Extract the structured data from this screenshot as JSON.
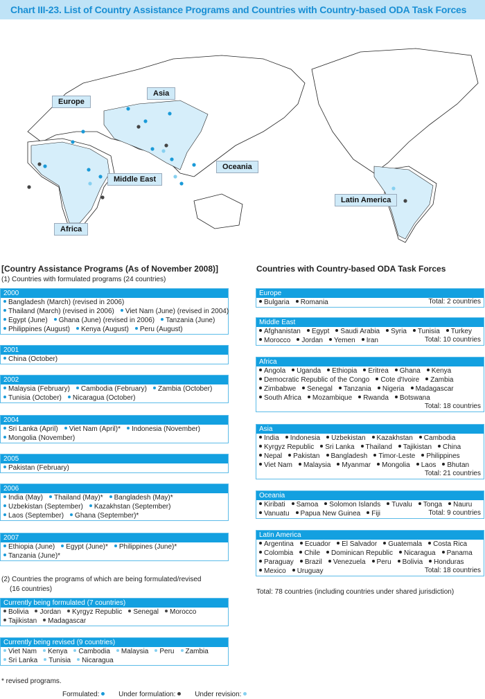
{
  "title": "Chart III-23. List of Country Assistance Programs and Countries with Country-based ODA Task Forces",
  "map": {
    "labels": [
      "Europe",
      "Asia",
      "Middle East",
      "Oceania",
      "Africa",
      "Latin America"
    ],
    "dot_colors": {
      "formulated": "#1a9ad8",
      "under_formulation": "#444444",
      "under_revision": "#86d0f0"
    }
  },
  "programs": {
    "heading": "[Country Assistance Programs (As of November 2008)]",
    "sub1": "(1) Countries with formulated programs (24 countries)",
    "years": [
      {
        "label": "2000",
        "rows": [
          [
            "Bangladesh (March) (revised in 2006)"
          ],
          [
            "Thailand (March) (revised in 2006)",
            "Viet Nam (June) (revised in 2004)"
          ],
          [
            "Egypt (June)",
            "Ghana (June) (revised in 2006)",
            "Tanzania (June)"
          ],
          [
            "Philippines (August)",
            "Kenya (August)",
            "Peru (August)"
          ]
        ]
      },
      {
        "label": "2001",
        "rows": [
          [
            "China (October)"
          ]
        ]
      },
      {
        "label": "2002",
        "rows": [
          [
            "Malaysia (February)",
            "Cambodia (February)",
            "Zambia (October)"
          ],
          [
            "Tunisia (October)",
            "Nicaragua (October)"
          ]
        ]
      },
      {
        "label": "2004",
        "rows": [
          [
            "Sri Lanka (April)",
            "Viet Nam (April)*",
            "Indonesia (November)"
          ],
          [
            "Mongolia (November)"
          ]
        ]
      },
      {
        "label": "2005",
        "rows": [
          [
            "Pakistan (February)"
          ]
        ]
      },
      {
        "label": "2006",
        "rows": [
          [
            "India (May)",
            "Thailand (May)*",
            "Bangladesh (May)*"
          ],
          [
            "Uzbekistan (September)",
            "Kazakhstan (September)"
          ],
          [
            "Laos (September)",
            "Ghana (September)*"
          ]
        ]
      },
      {
        "label": "2007",
        "rows": [
          [
            "Ethiopia (June)",
            "Egypt (June)*",
            "Philippines (June)*"
          ],
          [
            "Tanzania (June)*"
          ]
        ]
      }
    ],
    "sub2_line1": "(2) Countries the programs of which are being formulated/revised",
    "sub2_line2": "(16 countries)",
    "formulating": {
      "label": "Currently being formulated (7 countries)",
      "rows": [
        [
          "Bolivia",
          "Jordan",
          "Kyrgyz Republic",
          "Senegal",
          "Morocco"
        ],
        [
          "Tajikistan",
          "Madagascar"
        ]
      ]
    },
    "revising": {
      "label": "Currently being revised (9 countries)",
      "rows": [
        [
          "Viet Nam",
          "Kenya",
          "Cambodia",
          "Malaysia",
          "Peru",
          "Zambia"
        ],
        [
          "Sri Lanka",
          "Tunisia",
          "Nicaragua"
        ]
      ]
    },
    "footnote": "* revised programs.",
    "legend": {
      "formulated": "Formulated:",
      "under_formulation": "Under formulation:",
      "under_revision": "Under revision:"
    }
  },
  "task_forces": {
    "heading": "Countries with Country-based ODA Task Forces",
    "regions": [
      {
        "label": "Europe",
        "rows": [
          [
            "Bulgaria",
            "Romania"
          ]
        ],
        "total": "Total: 2 countries"
      },
      {
        "label": "Middle East",
        "rows": [
          [
            "Afghanistan",
            "Egypt",
            "Saudi Arabia",
            "Syria",
            "Tunisia",
            "Turkey"
          ],
          [
            "Morocco",
            "Jordan",
            "Yemen",
            "Iran"
          ]
        ],
        "total": "Total: 10 countries"
      },
      {
        "label": "Africa",
        "rows": [
          [
            "Angola",
            "Uganda",
            "Ethiopia",
            "Eritrea",
            "Ghana",
            "Kenya"
          ],
          [
            "Democratic Republic of the Congo",
            "Cote d'Ivoire",
            "Zambia"
          ],
          [
            "Zimbabwe",
            "Senegal",
            "Tanzania",
            "Nigeria",
            "Madagascar"
          ],
          [
            "South Africa",
            "Mozambique",
            "Rwanda",
            "Botswana"
          ]
        ],
        "total": "Total: 18 countries"
      },
      {
        "label": "Asia",
        "rows": [
          [
            "India",
            "Indonesia",
            "Uzbekistan",
            "Kazakhstan",
            "Cambodia"
          ],
          [
            "Kyrgyz Republic",
            "Sri Lanka",
            "Thailand",
            "Tajikistan",
            "China"
          ],
          [
            "Nepal",
            "Pakistan",
            "Bangladesh",
            "Timor-Leste",
            "Philippines"
          ],
          [
            "Viet Nam",
            "Malaysia",
            "Myanmar",
            "Mongolia",
            "Laos",
            "Bhutan"
          ]
        ],
        "total": "Total: 21 countries"
      },
      {
        "label": "Oceania",
        "rows": [
          [
            "Kiribati",
            "Samoa",
            "Solomon Islands",
            "Tuvalu",
            "Tonga",
            "Nauru"
          ],
          [
            "Vanuatu",
            "Papua New Guinea",
            "Fiji"
          ]
        ],
        "total": "Total: 9 countries"
      },
      {
        "label": "Latin America",
        "rows": [
          [
            "Argentina",
            "Ecuador",
            "El Salvador",
            "Guatemala",
            "Costa Rica"
          ],
          [
            "Colombia",
            "Chile",
            "Dominican Republic",
            "Nicaragua",
            "Panama"
          ],
          [
            "Paraguay",
            "Brazil",
            "Venezuela",
            "Peru",
            "Bolivia",
            "Honduras"
          ],
          [
            "Mexico",
            "Uruguay"
          ]
        ],
        "total": "Total: 18 countries"
      }
    ],
    "grand_total": "Total: 78 countries (including countries under shared jurisdiction)"
  }
}
